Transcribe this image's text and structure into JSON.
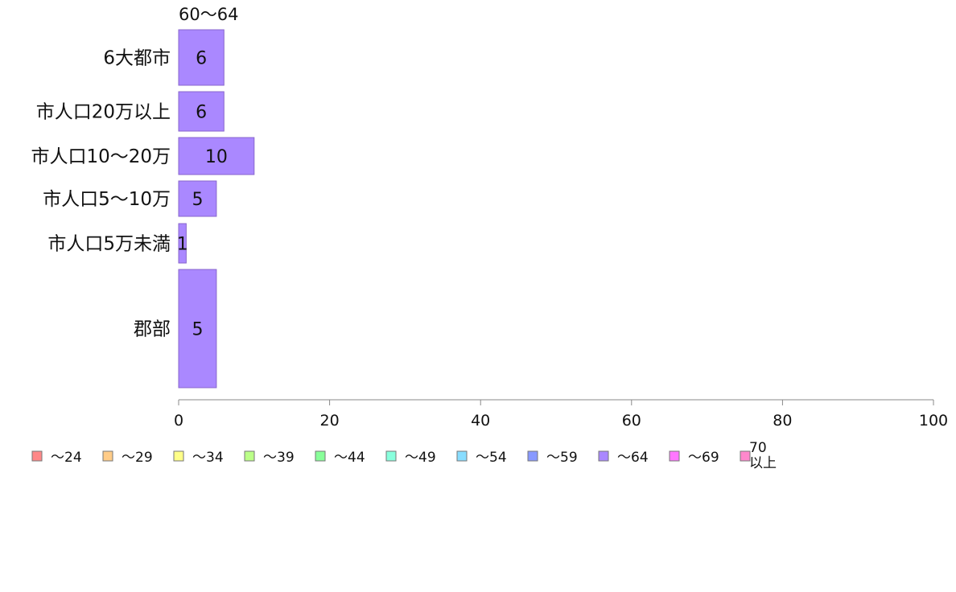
{
  "chart_data": {
    "type": "bar",
    "orientation": "horizontal",
    "title": "60〜64",
    "categories": [
      "6大都市",
      "市人口20万以上",
      "市人口10〜20万",
      "市人口5〜10万",
      "市人口5万未満",
      "郡部"
    ],
    "values": [
      6,
      6,
      10,
      5,
      1,
      5
    ],
    "data_labels": [
      "6",
      "6",
      "10",
      "5",
      "1",
      "5"
    ],
    "xlim": [
      0,
      100
    ],
    "x_ticks": [
      {
        "value": 0,
        "label": "0"
      },
      {
        "value": 20,
        "label": "20"
      },
      {
        "value": 40,
        "label": "40"
      },
      {
        "value": 60,
        "label": "60"
      },
      {
        "value": 80,
        "label": "80"
      },
      {
        "value": 100,
        "label": "100"
      }
    ],
    "bar_color": "#aa88ff",
    "grid": false,
    "legend_position": "bottom-left",
    "legend": [
      {
        "label": "〜24",
        "color": "#ff8888"
      },
      {
        "label": "〜29",
        "color": "#ffcc88"
      },
      {
        "label": "〜34",
        "color": "#ffff88"
      },
      {
        "label": "〜39",
        "color": "#bbff88"
      },
      {
        "label": "〜44",
        "color": "#88ff99"
      },
      {
        "label": "〜49",
        "color": "#88ffdd"
      },
      {
        "label": "〜54",
        "color": "#88ddff"
      },
      {
        "label": "〜59",
        "color": "#8899ff"
      },
      {
        "label": "〜64",
        "color": "#aa88ff"
      },
      {
        "label": "〜69",
        "color": "#ff77ff"
      },
      {
        "label": "70\n以上",
        "color": "#ff88cc"
      }
    ]
  }
}
